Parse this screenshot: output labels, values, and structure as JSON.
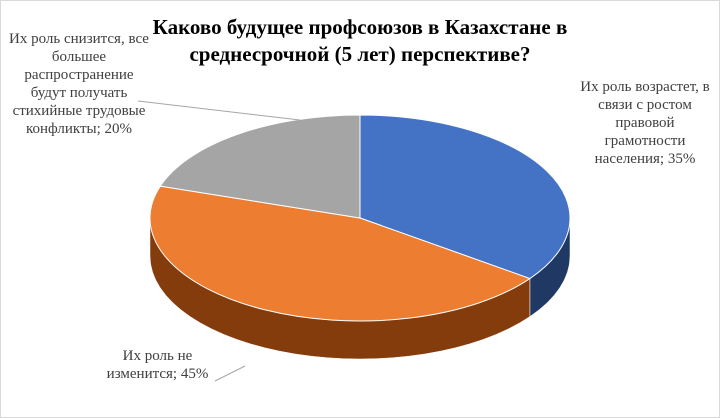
{
  "chart_data": {
    "type": "pie3d",
    "title": "Каково будущее профсоюзов в Казахстане в среднесрочной (5 лет) перспективе?",
    "values": [
      35,
      45,
      20
    ],
    "value_labels": [
      "Их роль возрастет, в связи с ростом правовой грамотности населения; 35%",
      "Их роль не изменится; 45%",
      "Их роль снизится, все большее распространение будут получать стихийные трудовые конфликты; 20%"
    ],
    "colors": [
      "#4472c4",
      "#ed7d31",
      "#a5a5a5"
    ],
    "side_colors": [
      "#1f3864",
      "#843c0c",
      "#595959"
    ]
  }
}
